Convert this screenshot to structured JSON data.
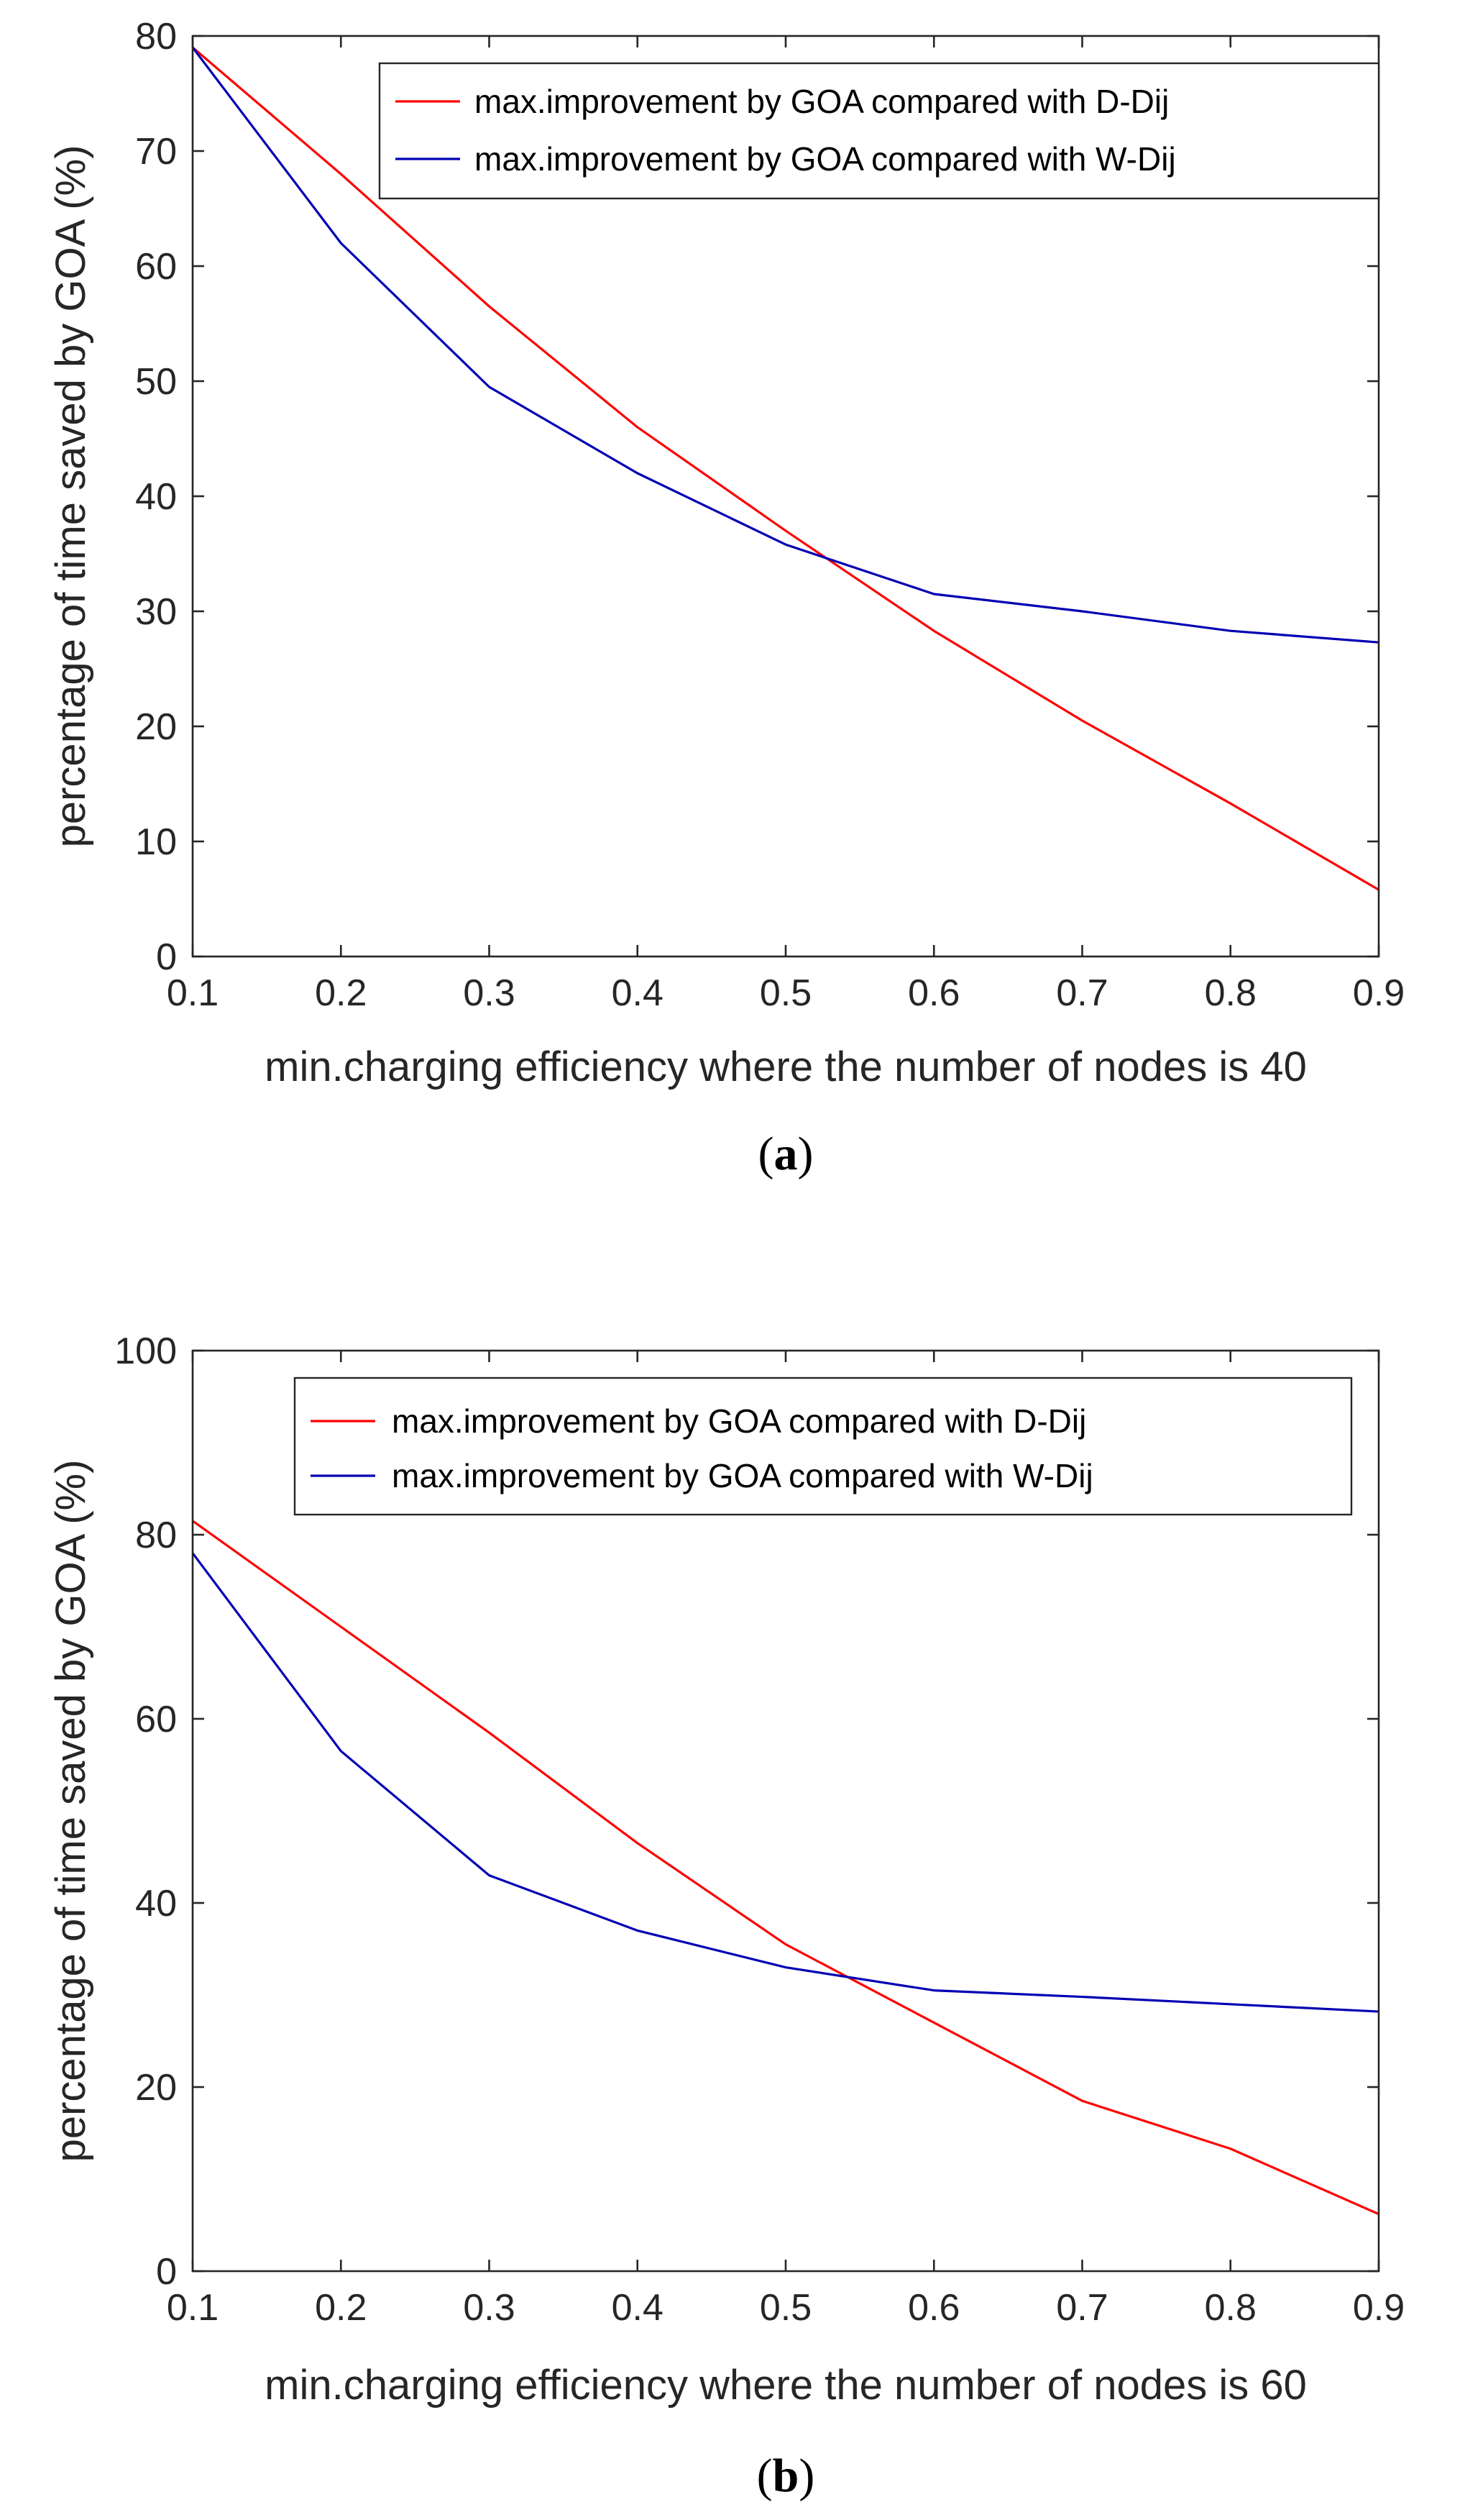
{
  "chart_data": [
    {
      "type": "line",
      "id": "a",
      "caption_letter": "a",
      "caption_open": "(",
      "caption_close": ")",
      "xlabel": "min.charging efficiency where the number of nodes is 40",
      "ylabel": "percentage of time saved by GOA (%)",
      "xlim": [
        0.1,
        0.9
      ],
      "ylim": [
        0,
        80
      ],
      "xticks": [
        0.1,
        0.2,
        0.3,
        0.4,
        0.5,
        0.6,
        0.7,
        0.8,
        0.9
      ],
      "yticks": [
        0,
        10,
        20,
        30,
        40,
        50,
        60,
        70,
        80
      ],
      "x": [
        0.1,
        0.2,
        0.3,
        0.4,
        0.5,
        0.6,
        0.7,
        0.8,
        0.9
      ],
      "legend_position": "top-right",
      "series": [
        {
          "name": "max.improvement by GOA compared with D-Dij",
          "color": "#ff0000",
          "values": [
            79,
            68,
            56.5,
            46,
            37,
            28.3,
            20.5,
            13.3,
            5.8
          ]
        },
        {
          "name": "max.improvement by GOA compared with W-Dij",
          "color": "#0000b4",
          "values": [
            79,
            62,
            49.5,
            42,
            35.8,
            31.5,
            30,
            28.3,
            27.3
          ]
        }
      ]
    },
    {
      "type": "line",
      "id": "b",
      "caption_letter": "b",
      "caption_open": "(",
      "caption_close": ")",
      "xlabel": "min.charging efficiency where the number of nodes is 60",
      "ylabel": "percentage of time saved by GOA (%)",
      "xlim": [
        0.1,
        0.9
      ],
      "ylim": [
        0,
        100
      ],
      "xticks": [
        0.1,
        0.2,
        0.3,
        0.4,
        0.5,
        0.6,
        0.7,
        0.8,
        0.9
      ],
      "yticks": [
        0,
        20,
        40,
        60,
        80,
        100
      ],
      "x": [
        0.1,
        0.2,
        0.3,
        0.4,
        0.5,
        0.6,
        0.7,
        0.8,
        0.9
      ],
      "legend_position": "top-right",
      "series": [
        {
          "name": "max.improvement by GOA compared with D-Dij",
          "color": "#ff0000",
          "values": [
            81.5,
            70,
            58.5,
            46.5,
            35.5,
            27,
            18.5,
            13.3,
            6.2
          ]
        },
        {
          "name": "max.improvement by GOA compared with W-Dij",
          "color": "#0000b4",
          "values": [
            78,
            56.5,
            43,
            37,
            33,
            30.5,
            29.8,
            29,
            28.2
          ]
        }
      ]
    }
  ]
}
